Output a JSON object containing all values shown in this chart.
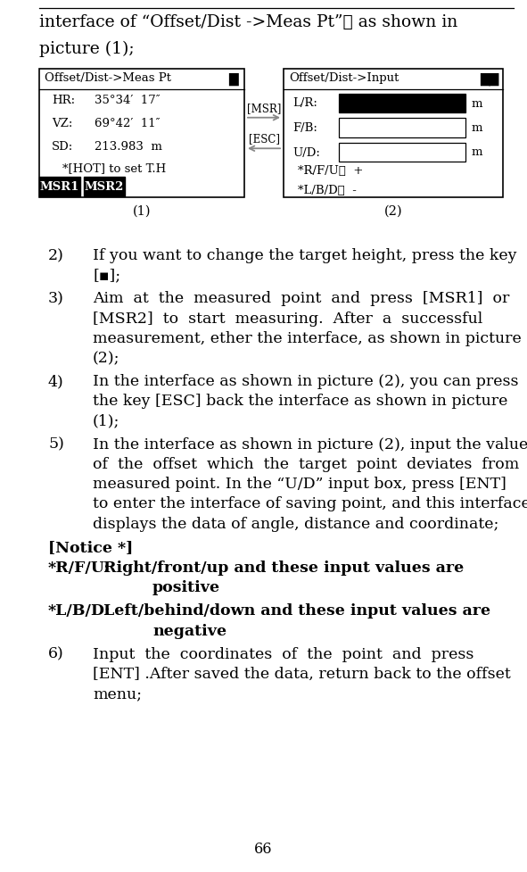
{
  "page_width": 5.91,
  "page_height": 9.78,
  "bg_color": "#ffffff",
  "box1_title": "Offset/Dist->Meas Pt",
  "box1_rows": [
    [
      "HR:",
      "35°34′  17″"
    ],
    [
      "VZ:",
      "69°42′  11″"
    ],
    [
      "SD:",
      "213.983  m"
    ]
  ],
  "box1_hot": "*[HOT] to set T.H",
  "box1_btn1": "MSR1",
  "box1_btn2": "MSR2",
  "box2_title": "Offset/Dist->Input",
  "box2_field_labels": [
    "L/R:",
    "F/B:",
    "U/D:"
  ],
  "box2_field_colors": [
    "black",
    "white",
    "white"
  ],
  "box2_notes": [
    "*R/F/U：  +",
    "*L/B/D：  -"
  ],
  "label1": "(1)",
  "label2": "(2)",
  "arrow_msr_label": "[MSR]",
  "arrow_esc_label": "[ESC]",
  "notice_label": "[Notice *]",
  "notice1_prefix": "*R/F/U:",
  "notice1_rest": "  Right/front/up and these input values are",
  "notice1_cont": "positive",
  "notice2_prefix": "*L/B/D:",
  "notice2_rest": "  Left/behind/down and these input values are",
  "notice2_cont": "negative",
  "page_number": "66",
  "font_size_header": 13.5,
  "font_size_body": 12.5,
  "font_size_box": 9.5,
  "font_size_page": 11.5
}
